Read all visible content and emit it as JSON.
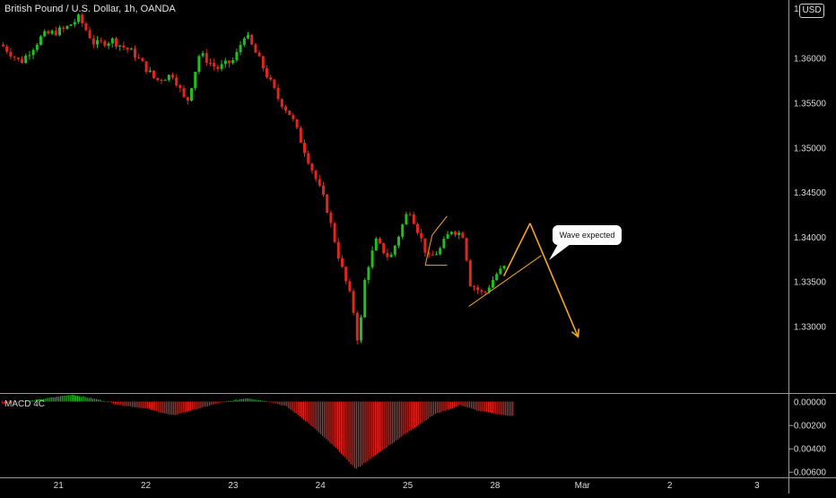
{
  "header": {
    "title": "British Pound / U.S. Dollar, 1h, OANDA",
    "currency": "USD"
  },
  "colors": {
    "background": "#000000",
    "up": "#1fbf1f",
    "down": "#e0261e",
    "drawing": "#f5a623",
    "text": "#d8d8d8"
  },
  "annotation": {
    "label": "Wave expected"
  },
  "chart_data": [
    {
      "type": "candlestick",
      "title": "British Pound / U.S. Dollar, 1h, OANDA",
      "y_ticks": [
        1.36,
        1.355,
        1.35,
        1.345,
        1.34,
        1.335,
        1.33
      ],
      "y_tick_labels": [
        "1.36000",
        "1.35500",
        "1.35000",
        "1.34500",
        "1.34000",
        "1.33500",
        "1.33000"
      ],
      "ylim": [
        1.3225,
        1.3665
      ],
      "x_ticks": [
        {
          "t": 0,
          "label": "21"
        },
        {
          "t": 1,
          "label": "22"
        },
        {
          "t": 2,
          "label": "23"
        },
        {
          "t": 3,
          "label": "24"
        },
        {
          "t": 4,
          "label": "25"
        },
        {
          "t": 5,
          "label": "28"
        },
        {
          "t": 6,
          "label": "Mar"
        },
        {
          "t": 7,
          "label": "2"
        },
        {
          "t": 8,
          "label": "3"
        }
      ],
      "xlim": [
        -0.67,
        8.36
      ],
      "price_path": [
        [
          -0.67,
          1.3615
        ],
        [
          -0.45,
          1.3595
        ],
        [
          -0.2,
          1.3625
        ],
        [
          0.05,
          1.3632
        ],
        [
          0.22,
          1.3645
        ],
        [
          0.4,
          1.3615
        ],
        [
          0.6,
          1.362
        ],
        [
          0.85,
          1.3605
        ],
        [
          1.1,
          1.3575
        ],
        [
          1.3,
          1.3582
        ],
        [
          1.45,
          1.3548
        ],
        [
          1.6,
          1.3605
        ],
        [
          1.8,
          1.3588
        ],
        [
          2.0,
          1.3598
        ],
        [
          2.12,
          1.3628
        ],
        [
          2.3,
          1.3595
        ],
        [
          2.5,
          1.3555
        ],
        [
          2.65,
          1.3535
        ],
        [
          2.85,
          1.3485
        ],
        [
          3.05,
          1.3435
        ],
        [
          3.2,
          1.3375
        ],
        [
          3.35,
          1.3325
        ],
        [
          3.42,
          1.3278
        ],
        [
          3.5,
          1.3358
        ],
        [
          3.62,
          1.3395
        ],
        [
          3.78,
          1.3375
        ],
        [
          3.92,
          1.3412
        ],
        [
          4.0,
          1.3432
        ],
        [
          4.12,
          1.3402
        ],
        [
          4.22,
          1.3375
        ],
        [
          4.35,
          1.3385
        ],
        [
          4.48,
          1.3408
        ],
        [
          4.62,
          1.3402
        ],
        [
          4.7,
          1.3348
        ],
        [
          4.85,
          1.3335
        ],
        [
          5.0,
          1.3358
        ],
        [
          5.12,
          1.3368
        ]
      ],
      "patterns": {
        "flag_top": [
          [
            4.28,
            1.3402
          ],
          [
            4.45,
            1.3423
          ]
        ],
        "flag_bottom": [
          [
            4.2,
            1.3368
          ],
          [
            4.45,
            1.3368
          ]
        ],
        "flag_left": [
          [
            4.2,
            1.3368
          ],
          [
            4.28,
            1.3402
          ]
        ],
        "trendline": [
          [
            4.7,
            1.3322
          ],
          [
            5.53,
            1.3379
          ]
        ],
        "wave_up": [
          [
            5.1,
            1.3356
          ],
          [
            5.4,
            1.3415
          ]
        ],
        "wave_down": [
          [
            5.4,
            1.3415
          ],
          [
            5.95,
            1.3288
          ]
        ],
        "arrow_head": [
          5.95,
          1.3288
        ]
      }
    },
    {
      "type": "bar",
      "title": "MACD 4C",
      "y_ticks": [
        0,
        -0.002,
        -0.004,
        -0.006
      ],
      "y_tick_labels": [
        "0.00000",
        "−0.00200",
        "−0.00400",
        "−0.00600"
      ],
      "ylim": [
        -0.0065,
        0.0005
      ],
      "histogram_path": [
        [
          -0.67,
          -0.0002
        ],
        [
          -0.3,
          0.0001
        ],
        [
          0.15,
          0.0006
        ],
        [
          0.5,
          0.0001
        ],
        [
          0.7,
          -0.0003
        ],
        [
          1.0,
          -0.0006
        ],
        [
          1.3,
          -0.0012
        ],
        [
          1.55,
          -0.0007
        ],
        [
          1.85,
          -0.0001
        ],
        [
          2.15,
          0.0003
        ],
        [
          2.4,
          0.0
        ],
        [
          2.6,
          -0.0004
        ],
        [
          2.85,
          -0.0018
        ],
        [
          3.2,
          -0.0042
        ],
        [
          3.4,
          -0.0058
        ],
        [
          3.7,
          -0.0042
        ],
        [
          4.0,
          -0.0026
        ],
        [
          4.3,
          -0.0011
        ],
        [
          4.6,
          -0.0003
        ],
        [
          4.8,
          -0.0008
        ],
        [
          5.12,
          -0.0012
        ]
      ]
    }
  ]
}
